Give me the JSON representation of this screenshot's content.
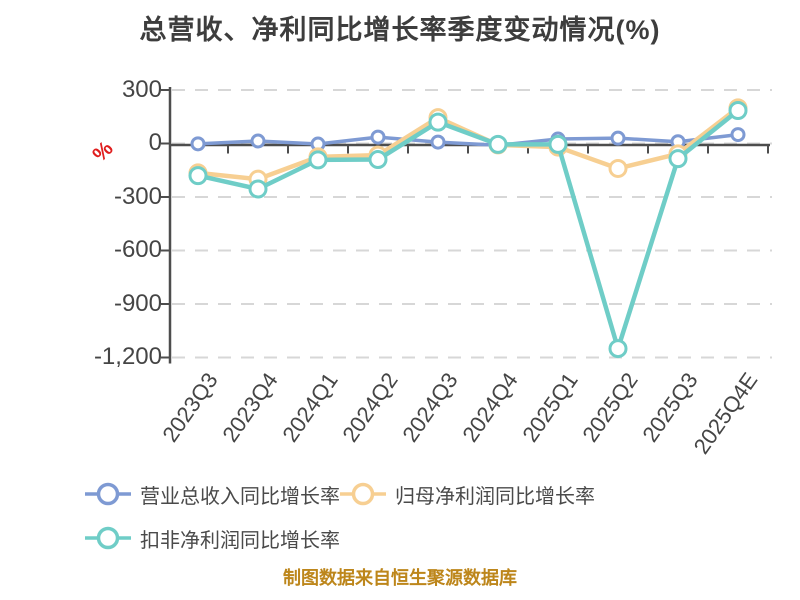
{
  "title": "总营收、净利同比增长率季度变动情况(%)",
  "y_axis": {
    "name": "%",
    "name_color": "#e01e1e",
    "ticks": [
      "300",
      "0",
      "-300",
      "-600",
      "-900",
      "-1,200"
    ]
  },
  "chart_data": {
    "type": "line",
    "title": "总营收、净利同比增长率季度变动情况(%)",
    "categories": [
      "2023Q3",
      "2023Q4",
      "2024Q1",
      "2024Q2",
      "2024Q3",
      "2024Q4",
      "2025Q1",
      "2025Q2",
      "2025Q3",
      "2025Q4E"
    ],
    "series": [
      {
        "name": "营业总收入同比增长率",
        "color": "#7e9ad3",
        "values": [
          -2,
          14,
          -3,
          36,
          8,
          -10,
          25,
          30,
          10,
          50
        ]
      },
      {
        "name": "归母净利润同比增长率",
        "color": "#f7cf92",
        "values": [
          -165,
          -200,
          -75,
          -65,
          145,
          -8,
          -20,
          -140,
          -58,
          200
        ]
      },
      {
        "name": "扣非净利润同比增长率",
        "color": "#6fcdc7",
        "values": [
          -180,
          -255,
          -92,
          -90,
          120,
          -5,
          -5,
          -1150,
          -85,
          185
        ]
      }
    ],
    "ylabel": "%",
    "ylim": [
      -1200,
      300
    ],
    "y_ticks": [
      300,
      0,
      -300,
      -600,
      -900,
      -1200
    ],
    "grid": "horizontal dashed gridlines, x-axis line on zero",
    "gridline_color": "#d7d7d7",
    "axis_color": "#4d4d4d",
    "legend_position": "bottom-left"
  },
  "caption": {
    "text": "制图数据来自恒生聚源数据库",
    "color": "#bd861b"
  }
}
